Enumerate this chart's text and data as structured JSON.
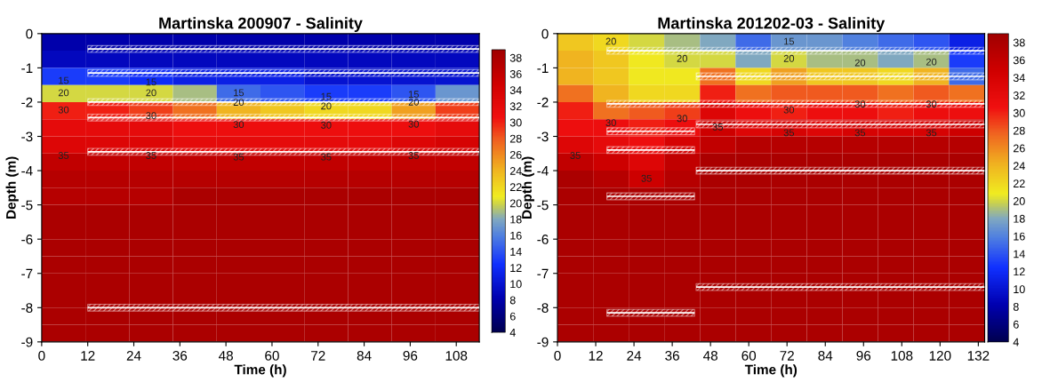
{
  "chart_data": [
    {
      "type": "heatmap",
      "title": "Martinska 200907 - Salinity",
      "xlabel": "Time (h)",
      "ylabel": "Depth (m)",
      "x": [
        5.7,
        17.1,
        28.5,
        39.9,
        51.3,
        62.7,
        74.1,
        85.5,
        96.9,
        108.3
      ],
      "cells": [
        [
          8,
          8,
          8,
          8,
          8,
          8,
          8,
          8,
          8,
          8
        ],
        [
          9,
          9,
          9,
          9,
          9,
          9,
          9,
          9,
          9,
          9
        ],
        [
          13,
          13,
          12,
          11,
          11,
          11,
          10,
          10,
          10,
          10
        ],
        [
          20,
          20,
          20,
          19,
          15,
          14,
          13,
          13,
          14,
          17
        ],
        [
          30,
          30,
          29,
          27,
          24,
          23,
          22,
          22,
          25,
          29
        ],
        [
          32,
          32,
          32,
          31,
          31,
          31,
          31,
          31,
          31,
          32
        ],
        [
          33,
          33,
          33,
          32,
          32,
          32,
          32,
          32,
          33,
          34
        ],
        [
          36,
          36,
          36,
          36,
          36,
          36,
          36,
          36,
          36,
          36
        ],
        [
          37,
          37,
          37,
          37,
          37,
          37,
          37,
          37,
          37,
          37
        ],
        [
          37,
          37,
          37,
          38,
          38,
          38,
          38,
          38,
          38,
          38
        ],
        [
          38,
          38,
          38,
          38,
          38,
          38,
          38,
          38,
          38,
          38
        ],
        [
          38,
          38,
          38,
          38,
          38,
          38,
          38,
          38,
          38,
          38
        ],
        [
          38,
          38,
          38,
          38,
          38,
          38,
          38,
          38,
          38,
          38
        ],
        [
          38,
          38,
          38,
          38,
          38,
          38,
          38,
          38,
          38,
          38
        ],
        [
          38,
          38,
          38,
          38,
          38,
          38,
          38,
          38,
          38,
          38
        ],
        [
          38,
          38,
          38,
          38,
          38,
          38,
          38,
          38,
          38,
          38
        ],
        [
          38,
          38,
          38,
          38,
          38,
          38,
          38,
          38,
          38,
          38
        ],
        [
          38,
          38,
          38,
          38,
          38,
          38,
          38,
          38,
          38,
          38
        ]
      ],
      "xlim": [
        0,
        114
      ],
      "xticks": [
        0,
        12,
        24,
        36,
        48,
        60,
        72,
        84,
        96,
        108
      ],
      "ylim": [
        -9,
        0
      ],
      "yticks": [
        -9,
        -8,
        -7,
        -6,
        -5,
        -4,
        -3,
        -2,
        -1,
        0
      ],
      "clim": [
        4,
        39
      ],
      "cticks": [
        4,
        6,
        8,
        10,
        12,
        14,
        16,
        18,
        20,
        22,
        24,
        26,
        28,
        30,
        32,
        34,
        36,
        38
      ],
      "series": [
        {
          "type": "line",
          "color": "#ffffff",
          "x": [
            12,
            114
          ],
          "values": [
            -0.45,
            -0.45
          ],
          "lower": [
            -0.55,
            -0.55
          ],
          "upper": [
            -0.35,
            -0.35
          ]
        },
        {
          "type": "line",
          "color": "#ffffff",
          "x": [
            12,
            114
          ],
          "values": [
            -1.15,
            -1.15
          ],
          "lower": [
            -1.25,
            -1.25
          ],
          "upper": [
            -1.05,
            -1.05
          ]
        },
        {
          "type": "line",
          "color": "#ffffff",
          "x": [
            12,
            114
          ],
          "values": [
            -2.0,
            -2.0
          ],
          "lower": [
            -2.1,
            -2.1
          ],
          "upper": [
            -1.9,
            -1.9
          ]
        },
        {
          "type": "line",
          "color": "#ffffff",
          "x": [
            12,
            114
          ],
          "values": [
            -2.45,
            -2.45
          ],
          "lower": [
            -2.55,
            -2.55
          ],
          "upper": [
            -2.35,
            -2.35
          ]
        },
        {
          "type": "line",
          "color": "#ffffff",
          "x": [
            12,
            114
          ],
          "values": [
            -3.45,
            -3.45
          ],
          "lower": [
            -3.55,
            -3.55
          ],
          "upper": [
            -3.35,
            -3.35
          ]
        },
        {
          "type": "line",
          "color": "#ffffff",
          "x": [
            12,
            114
          ],
          "values": [
            -8.0,
            -8.0
          ],
          "lower": [
            -8.1,
            -8.1
          ],
          "upper": [
            -7.9,
            -7.9
          ]
        }
      ],
      "annotations": [
        "15",
        "20",
        "30",
        "35",
        "15",
        "20",
        "30",
        "35",
        "15",
        "20",
        "30",
        "35",
        "15",
        "20",
        "30",
        "35",
        "15",
        "20",
        "30",
        "35"
      ]
    },
    {
      "type": "heatmap",
      "title": "Martinska 201202-03 - Salinity",
      "xlabel": "Time (h)",
      "ylabel": "Depth (m)",
      "x": [
        5.6,
        16.8,
        27.9,
        39.1,
        50.3,
        61.4,
        72.6,
        83.8,
        94.9,
        106.1,
        117.3,
        128.4
      ],
      "cells": [
        [
          23,
          22,
          20,
          19,
          18,
          15,
          17,
          17,
          16,
          15,
          14,
          11
        ],
        [
          24,
          23,
          21,
          20,
          20,
          18,
          20,
          19,
          19,
          18,
          19,
          13
        ],
        [
          24,
          23,
          21,
          21,
          27,
          22,
          25,
          23,
          23,
          22,
          24,
          15
        ],
        [
          27,
          24,
          22,
          22,
          30,
          27,
          28,
          28,
          28,
          27,
          28,
          27
        ],
        [
          30,
          27,
          28,
          29,
          33,
          31,
          30,
          31,
          31,
          30,
          31,
          31
        ],
        [
          31,
          31,
          30,
          31,
          35,
          33,
          34,
          33,
          34,
          34,
          34,
          35
        ],
        [
          33,
          32,
          31,
          34,
          36,
          37,
          37,
          37,
          37,
          37,
          37,
          37
        ],
        [
          36,
          35,
          33,
          36,
          38,
          38,
          38,
          38,
          38,
          38,
          38,
          38
        ],
        [
          38,
          37,
          35,
          37,
          38,
          38,
          38,
          38,
          38,
          38,
          38,
          38
        ],
        [
          38,
          38,
          38,
          38,
          38,
          38,
          38,
          38,
          38,
          38,
          38,
          38
        ],
        [
          38,
          38,
          38,
          38,
          38,
          38,
          38,
          38,
          38,
          38,
          38,
          38
        ],
        [
          38,
          38,
          38,
          38,
          38,
          38,
          38,
          38,
          38,
          38,
          38,
          38
        ],
        [
          38,
          38,
          38,
          38,
          38,
          38,
          38,
          38,
          38,
          38,
          38,
          38
        ],
        [
          38,
          38,
          38,
          38,
          38,
          38,
          38,
          38,
          38,
          38,
          38,
          38
        ],
        [
          38,
          38,
          38,
          38,
          38,
          38,
          38,
          38,
          38,
          38,
          38,
          38
        ],
        [
          38,
          38,
          38,
          38,
          38,
          38,
          38,
          38,
          38,
          38,
          38,
          38
        ],
        [
          38,
          38,
          38,
          38,
          38,
          38,
          38,
          38,
          38,
          38,
          38,
          38
        ],
        [
          38,
          38,
          38,
          38,
          38,
          38,
          38,
          38,
          38,
          38,
          38,
          38
        ]
      ],
      "xlim": [
        0,
        134
      ],
      "xticks": [
        0,
        12,
        24,
        36,
        48,
        60,
        72,
        84,
        96,
        108,
        120,
        132
      ],
      "ylim": [
        -9,
        0
      ],
      "yticks": [
        -9,
        -8,
        -7,
        -6,
        -5,
        -4,
        -3,
        -2,
        -1,
        0
      ],
      "clim": [
        4,
        39
      ],
      "cticks": [
        4,
        6,
        8,
        10,
        12,
        14,
        16,
        18,
        20,
        22,
        24,
        26,
        28,
        30,
        32,
        34,
        36,
        38
      ],
      "series": [
        {
          "type": "line",
          "color": "#ffffff",
          "x": [
            15.5,
            134
          ],
          "values": [
            -0.5,
            -0.5
          ],
          "lower": [
            -0.6,
            -0.6
          ],
          "upper": [
            -0.4,
            -0.4
          ]
        },
        {
          "type": "line",
          "color": "#ffffff",
          "x": [
            43.5,
            134
          ],
          "values": [
            -1.25,
            -1.25
          ],
          "lower": [
            -1.35,
            -1.35
          ],
          "upper": [
            -1.15,
            -1.15
          ]
        },
        {
          "type": "line",
          "color": "#ffffff",
          "x": [
            15.5,
            134
          ],
          "values": [
            -2.05,
            -2.05
          ],
          "lower": [
            -2.15,
            -2.15
          ],
          "upper": [
            -1.95,
            -1.95
          ]
        },
        {
          "type": "line",
          "color": "#ffffff",
          "x": [
            43.5,
            134
          ],
          "values": [
            -2.65,
            -2.65
          ],
          "lower": [
            -2.75,
            -2.75
          ],
          "upper": [
            -2.55,
            -2.55
          ]
        },
        {
          "type": "line",
          "color": "#ffffff",
          "x": [
            15.5,
            43
          ],
          "values": [
            -2.85,
            -2.85
          ],
          "lower": [
            -2.95,
            -2.95
          ],
          "upper": [
            -2.75,
            -2.75
          ]
        },
        {
          "type": "line",
          "color": "#ffffff",
          "x": [
            15.5,
            43
          ],
          "values": [
            -3.4,
            -3.4
          ],
          "lower": [
            -3.5,
            -3.5
          ],
          "upper": [
            -3.3,
            -3.3
          ]
        },
        {
          "type": "line",
          "color": "#ffffff",
          "x": [
            43.5,
            134
          ],
          "values": [
            -4.0,
            -4.0
          ],
          "lower": [
            -4.1,
            -4.1
          ],
          "upper": [
            -3.9,
            -3.9
          ]
        },
        {
          "type": "line",
          "color": "#ffffff",
          "x": [
            15.5,
            43
          ],
          "values": [
            -4.75,
            -4.75
          ],
          "lower": [
            -4.85,
            -4.85
          ],
          "upper": [
            -4.65,
            -4.65
          ]
        },
        {
          "type": "line",
          "color": "#ffffff",
          "x": [
            43.5,
            134
          ],
          "values": [
            -7.4,
            -7.4
          ],
          "lower": [
            -7.5,
            -7.5
          ],
          "upper": [
            -7.3,
            -7.3
          ]
        },
        {
          "type": "line",
          "color": "#ffffff",
          "x": [
            15.5,
            43
          ],
          "values": [
            -8.15,
            -8.15
          ],
          "lower": [
            -8.25,
            -8.25
          ],
          "upper": [
            -8.05,
            -8.05
          ]
        }
      ],
      "annotations": [
        "20",
        "20",
        "20",
        "20",
        "20",
        "15",
        "30",
        "35",
        "30",
        "35",
        "35",
        "30",
        "35",
        "30",
        "35",
        "30",
        "35"
      ]
    }
  ]
}
